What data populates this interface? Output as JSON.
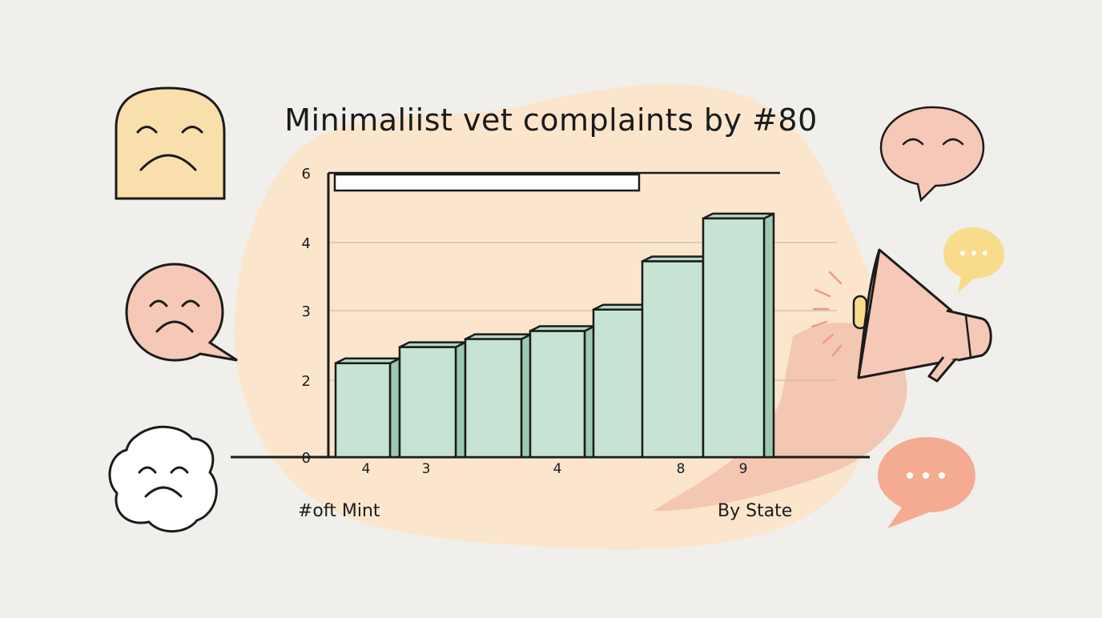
{
  "chart_data": {
    "type": "bar",
    "title": "Minimaliist vet complaints by #80",
    "yticks": [
      "0",
      "2",
      "3",
      "4",
      "6"
    ],
    "xtick_labels": [
      "4",
      "3",
      "",
      "4",
      "",
      "8",
      "9"
    ],
    "values": [
      1.75,
      2.05,
      2.2,
      2.35,
      2.75,
      3.65,
      4.45
    ],
    "ylim": [
      0,
      6
    ],
    "footer_left": "#oft Mint",
    "footer_right": "By State",
    "grid": true,
    "colors": {
      "bar_front": "#c6e3d3",
      "bar_side": "#9ccab0",
      "bar_top": "#b4d8c3",
      "outline": "#1b1b1b"
    }
  },
  "decor": {
    "icons": [
      "sad-square-face-icon",
      "sad-round-bubble-face-icon",
      "sad-cloud-face-icon",
      "happy-speech-bubble-icon",
      "typing-bubble-icon",
      "megaphone-icon",
      "ellipsis-bubble-icon"
    ],
    "colors": {
      "blob": "#fbe6cd",
      "peach": "#f6c8b7",
      "yellow": "#f8e0a8",
      "salmon": "#f4ab92",
      "butter": "#f8dc8c"
    }
  }
}
